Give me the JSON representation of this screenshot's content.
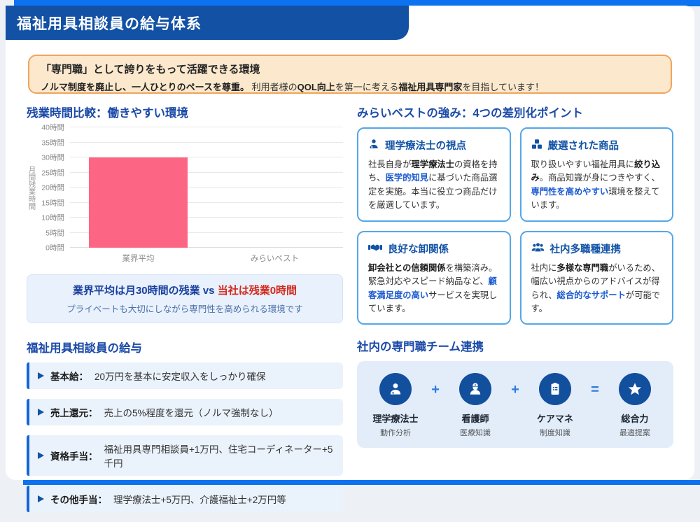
{
  "header": {
    "title": "福祉用具相談員の給与体系"
  },
  "callout": {
    "title": "「専門職」として誇りをもって活躍できる環境",
    "body": [
      {
        "t": "ノルマ制度を廃止し、一人ひとりのペースを尊重。",
        "s": "bold"
      },
      {
        "t": " 利用者様の"
      },
      {
        "t": "QOL向上",
        "s": "bold"
      },
      {
        "t": "を第一に考える"
      },
      {
        "t": "福祉用具専門家",
        "s": "bold"
      },
      {
        "t": "を目指しています！"
      }
    ]
  },
  "chart_section": {
    "title": "残業時間比較：働きやすい環境",
    "highlight_line": [
      {
        "t": "業界平均は月30時間の残業 vs ",
        "s": "navy"
      },
      {
        "t": "当社は残業0時間",
        "s": "red"
      }
    ],
    "highlight_sub": "プライベートも大切にしながら専門性を高められる環境です"
  },
  "chart_data": {
    "type": "bar",
    "title": "残業時間比較：働きやすい環境",
    "categories": [
      "業界平均",
      "みらいベスト"
    ],
    "values": [
      30,
      0
    ],
    "xlabel": "",
    "ylabel": "月間残業時間",
    "ylim": [
      0,
      40
    ],
    "ytick_step": 5,
    "ytick_suffix": "時間",
    "bar_color": "#FC6583",
    "grid": true,
    "legend": false
  },
  "salary": {
    "title": "福祉用具相談員の給与",
    "items": [
      {
        "label": "基本給：",
        "text": "20万円を基本に安定収入をしっかり確保"
      },
      {
        "label": "売上還元：",
        "text": "売上の5%程度を還元（ノルマ強制なし）"
      },
      {
        "label": "資格手当：",
        "text": "福祉用具専門相談員+1万円、住宅コーディネーター+5千円"
      },
      {
        "label": "その他手当：",
        "text": "理学療法士+5万円、介護福祉士+2万円等"
      }
    ]
  },
  "strengths": {
    "title": "みらいベストの強み：4つの差別化ポイント",
    "cards": [
      {
        "icon": "user-doctor-icon",
        "title": "理学療法士の視点",
        "body": [
          {
            "t": "社長自身が"
          },
          {
            "t": "理学療法士",
            "s": "bold"
          },
          {
            "t": "の資格を持ち、"
          },
          {
            "t": "医学的知見",
            "s": "blue"
          },
          {
            "t": "に基づいた商品選定を実施。本当に役立つ商品だけを厳選しています。"
          }
        ]
      },
      {
        "icon": "cubes-icon",
        "title": "厳選された商品",
        "body": [
          {
            "t": "取り扱いやすい福祉用具に"
          },
          {
            "t": "絞り込み",
            "s": "bold"
          },
          {
            "t": "。商品知識が身につきやすく、"
          },
          {
            "t": "専門性を高めやすい",
            "s": "blue"
          },
          {
            "t": "環境を整えています。"
          }
        ]
      },
      {
        "icon": "handshake-icon",
        "title": "良好な卸関係",
        "body": [
          {
            "t": "卸会社との信頼関係",
            "s": "bold"
          },
          {
            "t": "を構築済み。緊急対応やスピード納品など、"
          },
          {
            "t": "顧客満足度の高い",
            "s": "blue"
          },
          {
            "t": "サービスを実現しています。"
          }
        ]
      },
      {
        "icon": "users-icon",
        "title": "社内多職種連携",
        "body": [
          {
            "t": "社内に"
          },
          {
            "t": "多様な専門職",
            "s": "bold"
          },
          {
            "t": "がいるため、幅広い視点からのアドバイスが得られ、"
          },
          {
            "t": "総合的なサポート",
            "s": "blue"
          },
          {
            "t": "が可能です。"
          }
        ]
      }
    ]
  },
  "team": {
    "title": "社内の専門職チーム連携",
    "members": [
      {
        "icon": "physical-therapist-icon",
        "name": "理学療法士",
        "role": "動作分析"
      },
      {
        "icon": "nurse-icon",
        "name": "看護師",
        "role": "医療知識"
      },
      {
        "icon": "care-manager-icon",
        "name": "ケアマネ",
        "role": "制度知識"
      },
      {
        "icon": "star-icon",
        "name": "総合力",
        "role": "最適提案"
      }
    ],
    "operators": [
      "+",
      "+",
      "="
    ]
  },
  "colors": {
    "accent_blue": "#0C72F0",
    "header_blue": "#1251A4",
    "heading_blue": "#1B4AA8",
    "card_border_blue": "#54A7E8",
    "highlight_blue": "#1A5AD0",
    "navy_text": "#173F9E",
    "red_text": "#D2281C",
    "bar_pink": "#FC6583",
    "orange_border": "#F0A45C",
    "orange_bg": "#FCE9CD"
  }
}
